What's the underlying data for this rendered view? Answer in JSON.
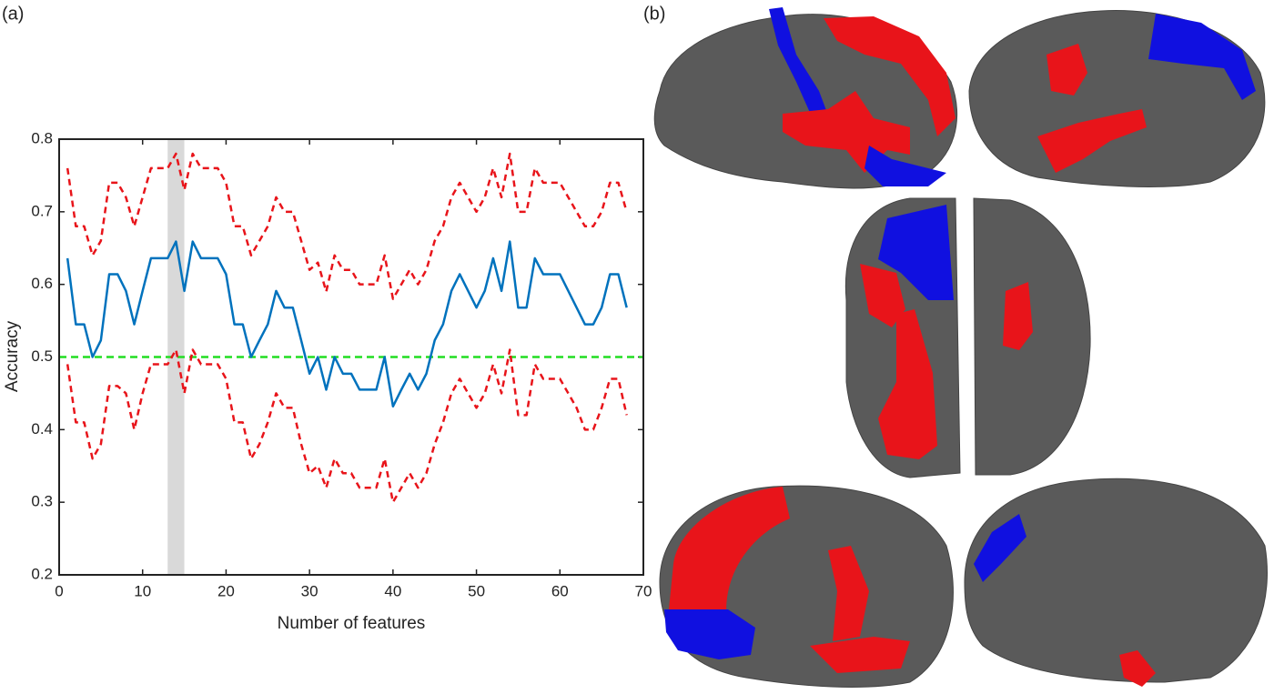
{
  "panel_labels": [
    "(a)",
    "(b)"
  ],
  "chart_data": {
    "type": "line",
    "xlabel": "Number of features",
    "ylabel": "Accuracy",
    "x": [
      1,
      2,
      3,
      4,
      5,
      6,
      7,
      8,
      9,
      10,
      11,
      12,
      13,
      14,
      15,
      16,
      17,
      18,
      19,
      20,
      21,
      22,
      23,
      24,
      25,
      26,
      27,
      28,
      29,
      30,
      31,
      32,
      33,
      34,
      35,
      36,
      37,
      38,
      39,
      40,
      41,
      42,
      43,
      44,
      45,
      46,
      47,
      48,
      49,
      50,
      51,
      52,
      53,
      54,
      55,
      56,
      57,
      58,
      59,
      60,
      61,
      62,
      63,
      64,
      65,
      66,
      67,
      68
    ],
    "series": [
      {
        "color": "#0072bd",
        "style": "solid",
        "values": [
          0.636,
          0.545,
          0.545,
          0.5,
          0.523,
          0.614,
          0.614,
          0.591,
          0.545,
          0.591,
          0.636,
          0.636,
          0.636,
          0.659,
          0.591,
          0.659,
          0.636,
          0.636,
          0.636,
          0.614,
          0.545,
          0.545,
          0.5,
          0.523,
          0.545,
          0.591,
          0.568,
          0.568,
          0.523,
          0.477,
          0.5,
          0.455,
          0.5,
          0.477,
          0.477,
          0.455,
          0.455,
          0.455,
          0.5,
          0.432,
          0.455,
          0.477,
          0.455,
          0.477,
          0.523,
          0.545,
          0.591,
          0.614,
          0.591,
          0.568,
          0.591,
          0.636,
          0.591,
          0.659,
          0.568,
          0.568,
          0.636,
          0.614,
          0.614,
          0.614,
          0.591,
          0.568,
          0.545,
          0.545,
          0.568,
          0.614,
          0.614,
          0.568
        ]
      },
      {
        "color": "#e8141a",
        "style": "dashed",
        "values": [
          0.76,
          0.68,
          0.68,
          0.64,
          0.66,
          0.74,
          0.74,
          0.72,
          0.68,
          0.72,
          0.76,
          0.76,
          0.76,
          0.78,
          0.73,
          0.78,
          0.76,
          0.76,
          0.76,
          0.74,
          0.68,
          0.68,
          0.64,
          0.66,
          0.68,
          0.72,
          0.7,
          0.7,
          0.66,
          0.62,
          0.63,
          0.59,
          0.64,
          0.62,
          0.62,
          0.6,
          0.6,
          0.6,
          0.64,
          0.58,
          0.6,
          0.62,
          0.6,
          0.62,
          0.66,
          0.68,
          0.72,
          0.74,
          0.72,
          0.7,
          0.72,
          0.76,
          0.72,
          0.78,
          0.7,
          0.7,
          0.76,
          0.74,
          0.74,
          0.74,
          0.72,
          0.7,
          0.68,
          0.68,
          0.7,
          0.74,
          0.74,
          0.7
        ]
      },
      {
        "color": "#e8141a",
        "style": "dashed",
        "values": [
          0.49,
          0.41,
          0.41,
          0.36,
          0.38,
          0.46,
          0.46,
          0.45,
          0.4,
          0.45,
          0.49,
          0.49,
          0.49,
          0.51,
          0.45,
          0.51,
          0.49,
          0.49,
          0.49,
          0.47,
          0.41,
          0.41,
          0.36,
          0.38,
          0.41,
          0.45,
          0.43,
          0.43,
          0.38,
          0.34,
          0.35,
          0.32,
          0.36,
          0.34,
          0.34,
          0.32,
          0.32,
          0.32,
          0.36,
          0.3,
          0.32,
          0.34,
          0.32,
          0.34,
          0.38,
          0.41,
          0.45,
          0.47,
          0.45,
          0.43,
          0.45,
          0.49,
          0.45,
          0.51,
          0.42,
          0.42,
          0.49,
          0.47,
          0.47,
          0.47,
          0.45,
          0.43,
          0.4,
          0.4,
          0.43,
          0.47,
          0.47,
          0.42
        ]
      }
    ],
    "hline": {
      "value": 0.5,
      "color": "#22dd22"
    },
    "highlight": {
      "range": [
        13,
        15
      ],
      "color": "#d9d9d9"
    },
    "xlim": [
      0,
      70
    ],
    "xticks": [
      0,
      10,
      20,
      30,
      40,
      50,
      60,
      70
    ],
    "ylim": [
      0.2,
      0.8
    ],
    "yticks": [
      0.2,
      0.3,
      0.4,
      0.5,
      0.6,
      0.7,
      0.8
    ]
  }
}
